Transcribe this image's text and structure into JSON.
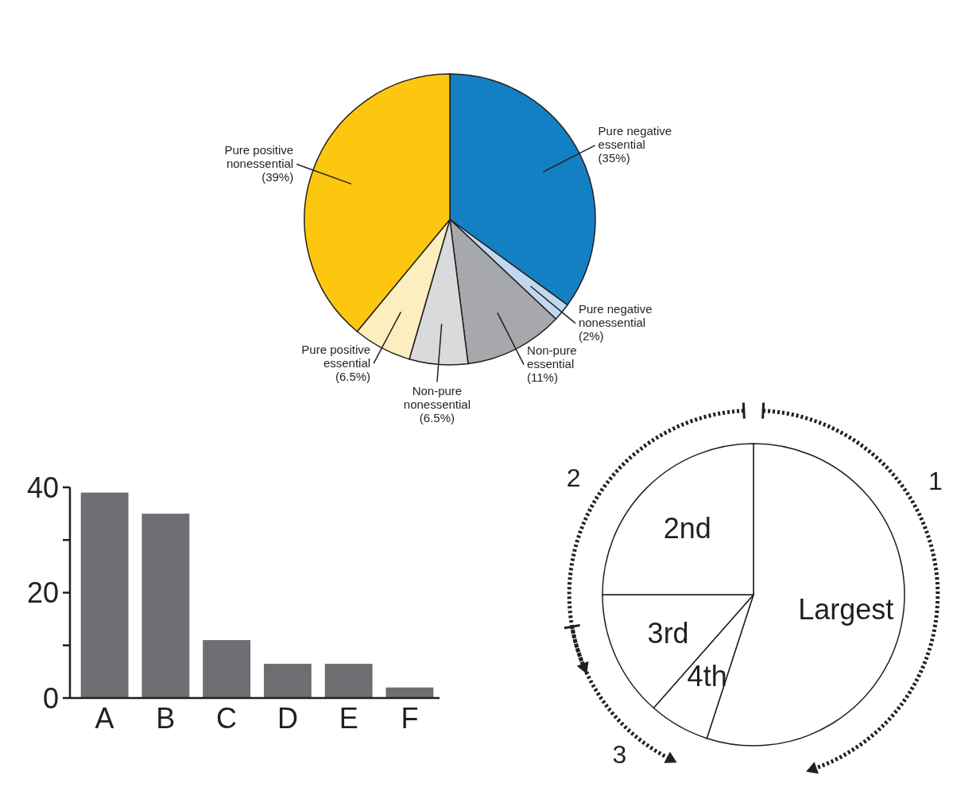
{
  "chart_data": [
    {
      "type": "pie",
      "categories": [
        "Pure negative essential",
        "Pure negative nonessential",
        "Non-pure essential",
        "Non-pure nonessential",
        "Pure positive essential",
        "Pure positive nonessential"
      ],
      "values": [
        35,
        2,
        11,
        6.5,
        6.5,
        39
      ],
      "colors": [
        "#1380c4",
        "#c0d8f0",
        "#a6a8ab",
        "#d9dadb",
        "#fdeec0",
        "#fdc70f"
      ],
      "value_labels": [
        "(35%)",
        "(2%)",
        "(11%)",
        "(6.5%)",
        "(6.5%)",
        "(39%)"
      ]
    },
    {
      "type": "bar",
      "categories": [
        "A",
        "B",
        "C",
        "D",
        "E",
        "F"
      ],
      "values": [
        39,
        35,
        11,
        6.5,
        6.5,
        2
      ],
      "color": "#6d6e71",
      "ylim": [
        0,
        40
      ],
      "yticks": [
        0,
        {
          "value": 10,
          "label": null
        },
        20,
        {
          "value": 30,
          "label": null
        },
        40
      ]
    },
    {
      "type": "pie",
      "categories": [
        "Largest",
        "4th",
        "3rd",
        "2nd"
      ],
      "values": [
        55,
        6.5,
        13.5,
        25
      ],
      "colors": [
        "#ffffff",
        "#ffffff",
        "#ffffff",
        "#ffffff"
      ],
      "annotations": [
        "1",
        "2",
        "3"
      ]
    }
  ]
}
